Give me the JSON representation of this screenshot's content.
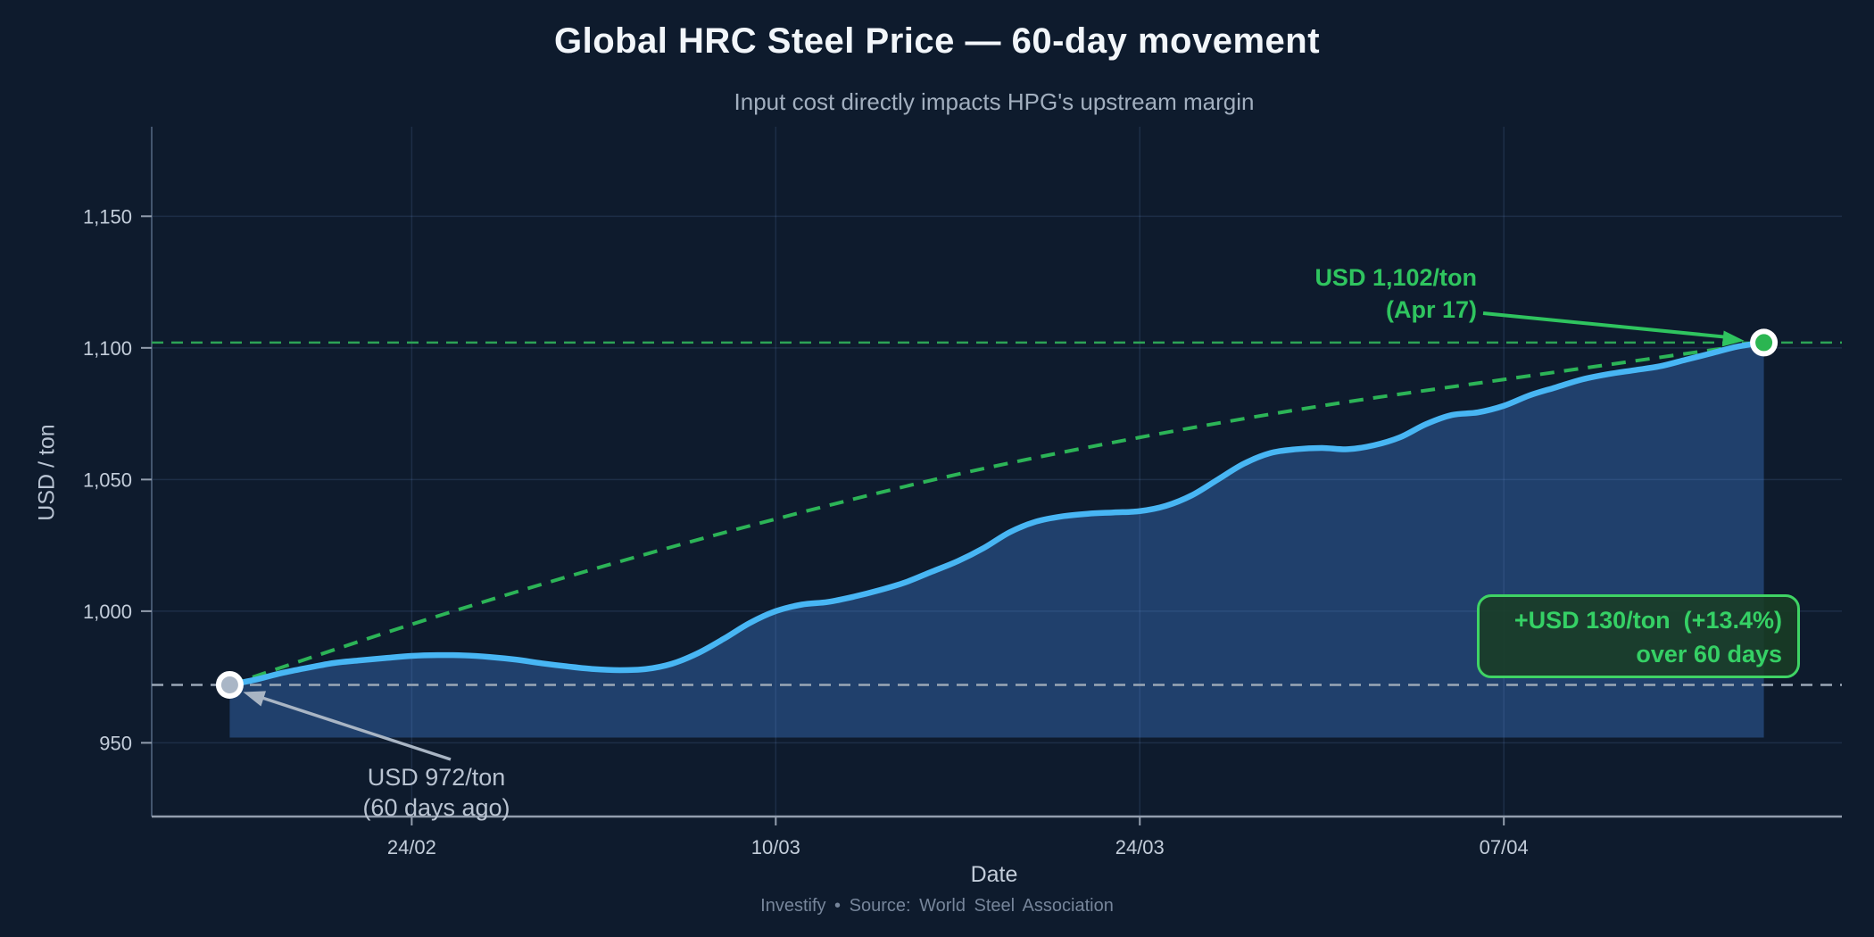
{
  "header": {
    "title": "Global HRC Steel Price — 60-day movement",
    "subtitle": "Input cost directly impacts HPG's upstream margin"
  },
  "footer": {
    "credit": "Investify • Source: World Steel Association"
  },
  "axes": {
    "y_title": "USD / ton",
    "x_title": "Date"
  },
  "annotations": {
    "end": {
      "line1": "USD 1,102/ton",
      "line2": "(Apr 17)"
    },
    "start": {
      "line1": "USD 972/ton",
      "line2": "(60 days ago)"
    },
    "badge": {
      "line1": "+USD 130/ton  (+13.4%)",
      "line2": "over 60 days"
    }
  },
  "colors": {
    "background": "#0e1b2d",
    "accent_green": "#2fc45f",
    "trend_green": "#2cb457",
    "ref_green": "#2da356",
    "line_blue": "#48b6f4",
    "fill_navy": "#20406c",
    "ref_gray": "#9aa7b6",
    "arrow_gray": "#a9b5c4",
    "marker_start_fill": "#a9b6c6",
    "marker_end_fill": "#2bb551",
    "grid": "rgba(110,150,210,0.16)",
    "axis_line_y": "#43556e",
    "axis_line_x": "#939eae",
    "tick_text": "#c3cdda"
  },
  "chart_data": {
    "type": "area",
    "title": "Global HRC Steel Price — 60-day movement",
    "subtitle": "Input cost directly impacts HPG's upstream margin",
    "xlabel": "Date",
    "ylabel": "USD / ton",
    "legend": "none",
    "grid": true,
    "xlim_days": [
      -3,
      62
    ],
    "ylim": [
      922,
      1184
    ],
    "x_ticks": [
      {
        "label": "24/02",
        "day": 7
      },
      {
        "label": "10/03",
        "day": 21
      },
      {
        "label": "24/03",
        "day": 35
      },
      {
        "label": "07/04",
        "day": 49
      }
    ],
    "y_ticks": [
      {
        "label": "950",
        "value": 950
      },
      {
        "label": "1,000",
        "value": 1000
      },
      {
        "label": "1,050",
        "value": 1050
      },
      {
        "label": "1,100",
        "value": 1100
      },
      {
        "label": "1,150",
        "value": 1150
      }
    ],
    "area_base_value": 952,
    "series": [
      {
        "name": "Global HRC steel price",
        "unit": "USD/ton",
        "x_unit": "day (0 = 60 days ago, 59 = Apr 17)",
        "values": [
          972,
          974,
          976.5,
          978.5,
          980.3,
          981.3,
          982.2,
          983,
          983.3,
          983.2,
          982.6,
          981.6,
          980.2,
          979,
          978,
          977.6,
          978,
          980,
          984,
          989.5,
          995.5,
          1000,
          1002.5,
          1003.5,
          1005.5,
          1008,
          1011,
          1015,
          1019,
          1024,
          1030,
          1034,
          1036,
          1037,
          1037.5,
          1038,
          1040,
          1044,
          1050,
          1056,
          1060,
          1061.5,
          1062,
          1061.5,
          1063,
          1066,
          1071,
          1074.5,
          1075.5,
          1078,
          1082,
          1085,
          1088,
          1090,
          1091.5,
          1093,
          1095.5,
          1098,
          1100.5,
          1102
        ]
      }
    ],
    "trend_line": {
      "style": "dashed",
      "points": [
        {
          "day": 0,
          "value": 972
        },
        {
          "day": 7,
          "value": 995
        },
        {
          "day": 14,
          "value": 1016
        },
        {
          "day": 21,
          "value": 1035
        },
        {
          "day": 28,
          "value": 1052
        },
        {
          "day": 35,
          "value": 1066
        },
        {
          "day": 42,
          "value": 1078
        },
        {
          "day": 49,
          "value": 1088
        },
        {
          "day": 54,
          "value": 1095
        },
        {
          "day": 59,
          "value": 1102
        }
      ]
    },
    "ref_lines": [
      {
        "value": 1102,
        "style": "dashed",
        "color": "green"
      },
      {
        "value": 972,
        "style": "dashed",
        "color": "gray"
      }
    ],
    "start_point": {
      "day": 0,
      "value": 972,
      "price_label": "USD 972/ton",
      "date_label": "(60 days ago)"
    },
    "end_point": {
      "day": 59,
      "value": 1102,
      "price_label": "USD 1,102/ton",
      "date_label": "(Apr 17)"
    },
    "change": {
      "abs": "+USD 130/ton",
      "pct": "+13.4%",
      "period": "over 60 days"
    }
  }
}
